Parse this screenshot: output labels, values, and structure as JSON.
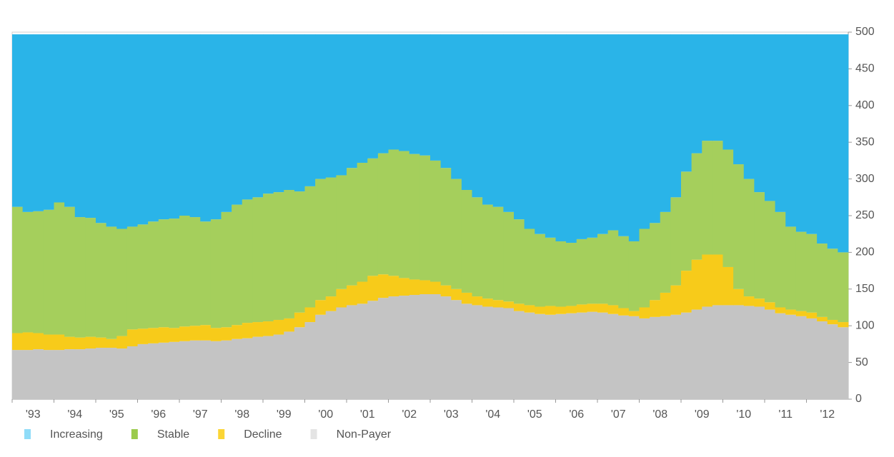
{
  "chart_data": {
    "type": "stacked_bar",
    "stack_gap": false,
    "categories": [
      "'93",
      null,
      null,
      null,
      "'94",
      null,
      null,
      null,
      "'95",
      null,
      null,
      null,
      "'96",
      null,
      null,
      null,
      "'97",
      null,
      null,
      null,
      "'98",
      null,
      null,
      null,
      "'99",
      null,
      null,
      null,
      "'00",
      null,
      null,
      null,
      "'01",
      null,
      null,
      null,
      "'02",
      null,
      null,
      null,
      "'03",
      null,
      null,
      null,
      "'04",
      null,
      null,
      null,
      "'05",
      null,
      null,
      null,
      "'06",
      null,
      null,
      null,
      "'07",
      null,
      null,
      null,
      "'08",
      null,
      null,
      null,
      "'09",
      null,
      null,
      null,
      "'10",
      null,
      null,
      null,
      "'11",
      null,
      null,
      null,
      "'12",
      null,
      null,
      null
    ],
    "series": [
      {
        "name": "Non-Payer",
        "color": "#c4c4c4",
        "legend_color": "#e4e4e4",
        "values": [
          67,
          67,
          68,
          67,
          67,
          68,
          68,
          69,
          70,
          70,
          69,
          72,
          75,
          76,
          77,
          78,
          79,
          80,
          80,
          79,
          80,
          82,
          83,
          85,
          86,
          88,
          92,
          98,
          105,
          115,
          120,
          125,
          128,
          130,
          134,
          138,
          140,
          141,
          142,
          143,
          143,
          140,
          135,
          130,
          128,
          126,
          125,
          124,
          120,
          118,
          116,
          115,
          116,
          117,
          118,
          119,
          118,
          116,
          114,
          113,
          110,
          112,
          113,
          115,
          118,
          122,
          126,
          128,
          128,
          128,
          127,
          126,
          122,
          117,
          115,
          113,
          110,
          106,
          102,
          98
        ]
      },
      {
        "name": "Decline",
        "color": "#f7cb1a",
        "legend_color": "#fbd535",
        "values": [
          23,
          24,
          22,
          21,
          21,
          17,
          16,
          16,
          14,
          12,
          17,
          23,
          21,
          21,
          21,
          19,
          20,
          20,
          21,
          18,
          18,
          19,
          21,
          20,
          20,
          20,
          18,
          20,
          20,
          20,
          20,
          25,
          27,
          30,
          34,
          32,
          28,
          24,
          21,
          19,
          17,
          15,
          15,
          15,
          12,
          11,
          10,
          9,
          10,
          10,
          10,
          12,
          10,
          10,
          11,
          11,
          12,
          12,
          10,
          7,
          15,
          23,
          32,
          40,
          57,
          68,
          71,
          69,
          52,
          22,
          13,
          11,
          10,
          8,
          7,
          7,
          8,
          6,
          6,
          7
        ]
      },
      {
        "name": "Stable",
        "color": "#a5cf5c",
        "legend_color": "#9bcb4c",
        "values": [
          172,
          164,
          166,
          170,
          180,
          177,
          164,
          162,
          156,
          153,
          146,
          140,
          142,
          145,
          147,
          149,
          151,
          148,
          141,
          148,
          157,
          164,
          168,
          170,
          174,
          174,
          175,
          165,
          165,
          165,
          162,
          155,
          160,
          162,
          160,
          165,
          172,
          173,
          171,
          170,
          165,
          160,
          150,
          140,
          135,
          128,
          127,
          122,
          115,
          104,
          99,
          93,
          89,
          86,
          89,
          90,
          95,
          102,
          98,
          95,
          107,
          105,
          110,
          120,
          135,
          145,
          155,
          155,
          160,
          170,
          160,
          145,
          138,
          130,
          113,
          108,
          107,
          100,
          97,
          95
        ]
      },
      {
        "name": "Increasing",
        "color": "#2ab4e8",
        "legend_color": "#8fdcf8",
        "values": [
          235,
          242,
          241,
          239,
          229,
          235,
          249,
          250,
          257,
          262,
          265,
          262,
          259,
          255,
          252,
          251,
          247,
          249,
          255,
          252,
          242,
          232,
          225,
          222,
          217,
          215,
          212,
          214,
          207,
          197,
          195,
          192,
          182,
          175,
          169,
          162,
          157,
          159,
          163,
          165,
          172,
          182,
          197,
          212,
          222,
          232,
          235,
          242,
          252,
          265,
          272,
          277,
          282,
          284,
          279,
          277,
          272,
          267,
          275,
          282,
          265,
          257,
          242,
          222,
          187,
          162,
          145,
          145,
          157,
          177,
          197,
          215,
          227,
          242,
          262,
          269,
          272,
          285,
          292,
          297
        ]
      }
    ],
    "ylim": [
      0,
      500
    ],
    "yticks": [
      0,
      50,
      100,
      150,
      200,
      250,
      300,
      350,
      400,
      450,
      500
    ],
    "y_axis_side": "right",
    "legend": "bottom-left"
  }
}
